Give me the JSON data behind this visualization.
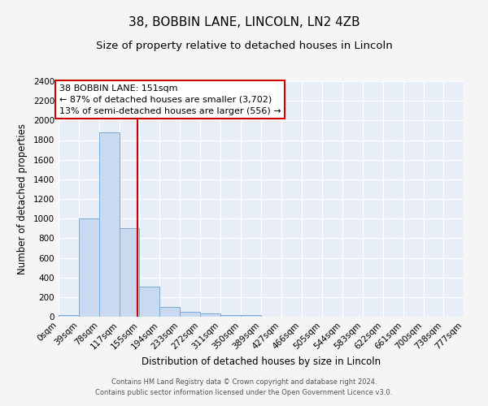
{
  "title": "38, BOBBIN LANE, LINCOLN, LN2 4ZB",
  "subtitle": "Size of property relative to detached houses in Lincoln",
  "xlabel": "Distribution of detached houses by size in Lincoln",
  "ylabel": "Number of detached properties",
  "footer_line1": "Contains HM Land Registry data © Crown copyright and database right 2024.",
  "footer_line2": "Contains public sector information licensed under the Open Government Licence v3.0.",
  "bin_edges": [
    0,
    39,
    78,
    117,
    155,
    194,
    233,
    272,
    311,
    350,
    389,
    427,
    466,
    505,
    544,
    583,
    622,
    661,
    700,
    738,
    777
  ],
  "bar_heights": [
    20,
    1000,
    1880,
    900,
    310,
    100,
    50,
    30,
    20,
    20,
    0,
    0,
    0,
    0,
    0,
    0,
    0,
    0,
    0,
    0
  ],
  "bar_color": "#c9d9ef",
  "bar_edge_color": "#7aaad4",
  "red_line_x": 151,
  "red_line_color": "#cc0000",
  "annotation_text_line1": "38 BOBBIN LANE: 151sqm",
  "annotation_text_line2": "← 87% of detached houses are smaller (3,702)",
  "annotation_text_line3": "13% of semi-detached houses are larger (556) →",
  "annotation_box_color": "#ffffff",
  "annotation_box_edge": "#cc0000",
  "ylim": [
    0,
    2400
  ],
  "yticks": [
    0,
    200,
    400,
    600,
    800,
    1000,
    1200,
    1400,
    1600,
    1800,
    2000,
    2200,
    2400
  ],
  "background_color": "#e8eef8",
  "grid_color": "#ffffff",
  "fig_bg_color": "#f5f5f5",
  "title_fontsize": 11,
  "subtitle_fontsize": 9.5,
  "tick_label_fontsize": 7.5,
  "axis_label_fontsize": 8.5,
  "annotation_fontsize": 8,
  "footer_fontsize": 6
}
